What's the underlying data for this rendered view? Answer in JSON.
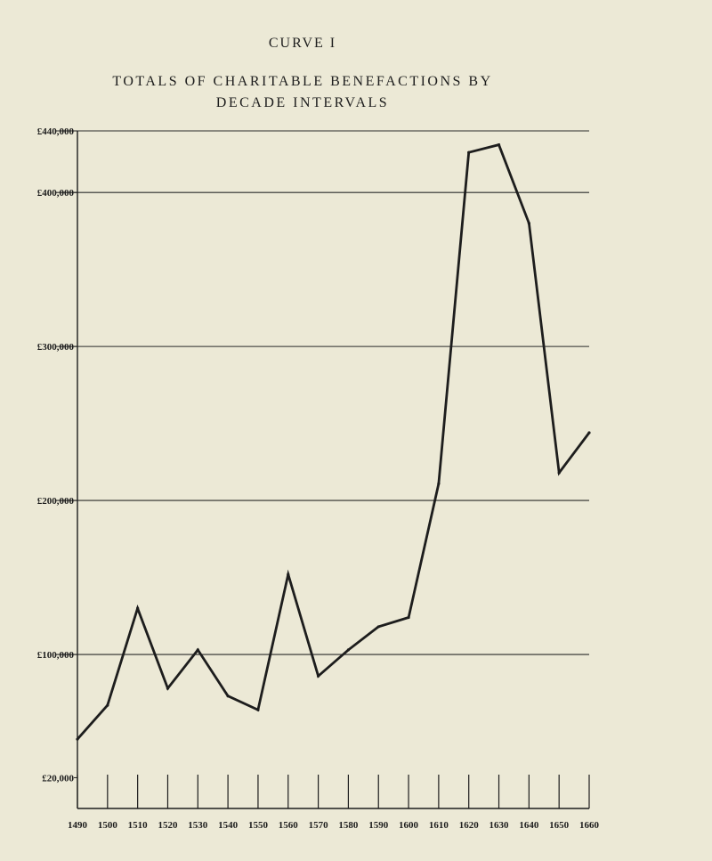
{
  "header": {
    "label": "CURVE I",
    "title_line1": "TOTALS OF CHARITABLE BENEFACTIONS BY",
    "title_line2": "DECADE INTERVALS"
  },
  "chart_data": {
    "type": "line",
    "title": "TOTALS OF CHARITABLE BENEFACTIONS BY DECADE INTERVALS",
    "xlabel": "",
    "ylabel": "",
    "x": [
      1490,
      1500,
      1510,
      1520,
      1530,
      1540,
      1550,
      1560,
      1570,
      1580,
      1590,
      1600,
      1610,
      1620,
      1630,
      1640,
      1650,
      1660
    ],
    "series": [
      {
        "values": [
          45000,
          67000,
          130000,
          78000,
          103000,
          73000,
          64000,
          152000,
          86000,
          103000,
          118000,
          124000,
          211000,
          426000,
          431000,
          380000,
          218000,
          244000
        ]
      }
    ],
    "y_tick_labels": [
      "£20,000",
      "£100,000",
      "£200,000",
      "£300,000",
      "£400,000",
      "£440,000"
    ],
    "y_ticks": [
      20000,
      100000,
      200000,
      300000,
      400000,
      440000
    ],
    "x_tick_labels": [
      "1490",
      "1500",
      "1510",
      "1520",
      "1530",
      "1540",
      "1550",
      "1560",
      "1570",
      "1580",
      "1590",
      "1600",
      "1610",
      "1620",
      "1630",
      "1640",
      "1650",
      "1660"
    ],
    "xlim": [
      1490,
      1660
    ],
    "ylim": [
      0,
      440000
    ],
    "grid": true,
    "gridlines_at": [
      100000,
      200000,
      300000,
      400000,
      440000
    ],
    "line_color": "#1d1d1d"
  }
}
